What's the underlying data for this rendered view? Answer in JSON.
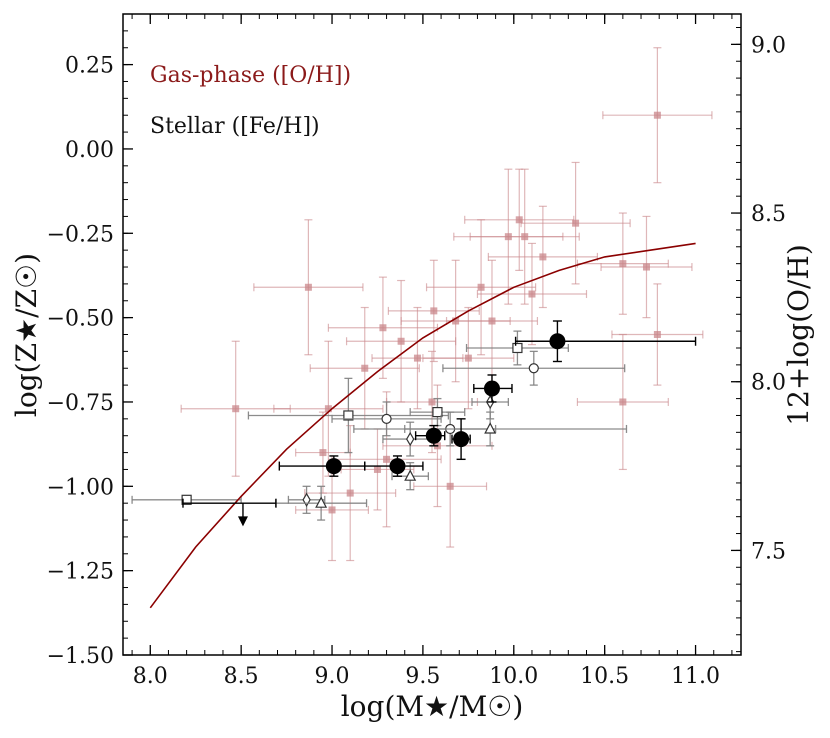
{
  "chart_data": {
    "type": "scatter",
    "xlabel": "log(M★/M☉)",
    "ylabel": "log(Z★/Z☉)",
    "y2label": "12+log(O/H)",
    "xlim": [
      7.85,
      11.25
    ],
    "ylim": [
      -1.5,
      0.4
    ],
    "y2lim": [
      7.19,
      9.09
    ],
    "x_ticks": [
      8.0,
      8.5,
      9.0,
      9.5,
      10.0,
      10.5,
      11.0
    ],
    "x_tick_labels": [
      "8.0",
      "8.5",
      "9.0",
      "9.5",
      "10.0",
      "10.5",
      "11.0"
    ],
    "y_ticks": [
      0.25,
      0.0,
      -0.25,
      -0.5,
      -0.75,
      -1.0,
      -1.25,
      -1.5
    ],
    "y_tick_labels": [
      "0.25",
      "0.00",
      "−0.25",
      "−0.50",
      "−0.75",
      "−1.00",
      "−1.25",
      "−1.50"
    ],
    "y2_ticks": [
      9.0,
      8.5,
      8.0,
      7.5
    ],
    "y2_tick_labels": [
      "9.0",
      "8.5",
      "8.0",
      "7.5"
    ],
    "legend": [
      {
        "label": "Gas-phase ([O/H])",
        "color": "#8b1a1a"
      },
      {
        "label": "Stellar ([Fe/H])",
        "color": "#111111"
      }
    ],
    "colors": {
      "gas": "#c9878b",
      "relation": "#8b0000",
      "stellar_black": "#000000",
      "stellar_gray": "#808080"
    },
    "relation_curve": {
      "name": "gas-phase mass-metallicity relation",
      "x": [
        8.0,
        8.25,
        8.5,
        8.75,
        9.0,
        9.25,
        9.5,
        9.75,
        10.0,
        10.25,
        10.5,
        10.75,
        11.0
      ],
      "y": [
        -1.36,
        -1.18,
        -1.03,
        -0.89,
        -0.77,
        -0.66,
        -0.56,
        -0.48,
        -0.41,
        -0.36,
        -0.32,
        -0.3,
        -0.28
      ]
    },
    "gas_points": [
      {
        "x": 10.79,
        "y": 0.1,
        "xerr": 0.3,
        "yerr": 0.2
      },
      {
        "x": 8.87,
        "y": -0.41,
        "xerr": 0.3,
        "yerr": 0.2
      },
      {
        "x": 8.47,
        "y": -0.77,
        "xerr": 0.3,
        "yerr": 0.2
      },
      {
        "x": 8.98,
        "y": -0.77,
        "xerr": 0.3,
        "yerr": 0.2
      },
      {
        "x": 9.18,
        "y": -0.65,
        "xerr": 0.3,
        "yerr": 0.18
      },
      {
        "x": 9.28,
        "y": -0.53,
        "xerr": 0.3,
        "yerr": 0.15
      },
      {
        "x": 9.38,
        "y": -0.57,
        "xerr": 0.3,
        "yerr": 0.18
      },
      {
        "x": 9.47,
        "y": -0.62,
        "xerr": 0.25,
        "yerr": 0.15
      },
      {
        "x": 9.56,
        "y": -0.48,
        "xerr": 0.25,
        "yerr": 0.15
      },
      {
        "x": 9.68,
        "y": -0.51,
        "xerr": 0.3,
        "yerr": 0.18
      },
      {
        "x": 9.75,
        "y": -0.62,
        "xerr": 0.25,
        "yerr": 0.15
      },
      {
        "x": 9.82,
        "y": -0.41,
        "xerr": 0.3,
        "yerr": 0.2
      },
      {
        "x": 9.88,
        "y": -0.51,
        "xerr": 0.25,
        "yerr": 0.18
      },
      {
        "x": 9.97,
        "y": -0.26,
        "xerr": 0.3,
        "yerr": 0.2
      },
      {
        "x": 10.03,
        "y": -0.21,
        "xerr": 0.3,
        "yerr": 0.15
      },
      {
        "x": 10.06,
        "y": -0.26,
        "xerr": 0.3,
        "yerr": 0.2
      },
      {
        "x": 10.1,
        "y": -0.43,
        "xerr": 0.3,
        "yerr": 0.15
      },
      {
        "x": 10.16,
        "y": -0.32,
        "xerr": 0.3,
        "yerr": 0.15
      },
      {
        "x": 10.34,
        "y": -0.22,
        "xerr": 0.3,
        "yerr": 0.18
      },
      {
        "x": 10.6,
        "y": -0.34,
        "xerr": 0.25,
        "yerr": 0.15
      },
      {
        "x": 10.73,
        "y": -0.35,
        "xerr": 0.25,
        "yerr": 0.15
      },
      {
        "x": 10.79,
        "y": -0.55,
        "xerr": 0.25,
        "yerr": 0.15
      },
      {
        "x": 10.6,
        "y": -0.75,
        "xerr": 0.25,
        "yerr": 0.2
      },
      {
        "x": 9.3,
        "y": -0.92,
        "xerr": 0.3,
        "yerr": 0.2
      },
      {
        "x": 9.58,
        "y": -0.88,
        "xerr": 0.3,
        "yerr": 0.18
      },
      {
        "x": 9.65,
        "y": -1.0,
        "xerr": 0.2,
        "yerr": 0.18
      },
      {
        "x": 9.55,
        "y": -0.75,
        "xerr": 0.25,
        "yerr": 0.15
      },
      {
        "x": 9.0,
        "y": -1.07,
        "xerr": 0.2,
        "yerr": 0.15
      },
      {
        "x": 9.25,
        "y": -0.95,
        "xerr": 0.2,
        "yerr": 0.12
      },
      {
        "x": 8.95,
        "y": -0.9,
        "xerr": 0.15,
        "yerr": 0.12
      },
      {
        "x": 9.1,
        "y": -1.02,
        "xerr": 0.25,
        "yerr": 0.2
      }
    ],
    "stellar_filled": [
      {
        "x": 9.01,
        "y": -0.94,
        "xerr_lo": 0.3,
        "xerr_hi": 0.17,
        "yerr": 0.03
      },
      {
        "x": 9.36,
        "y": -0.94,
        "xerr_lo": 0.18,
        "xerr_hi": 0.14,
        "yerr": 0.03
      },
      {
        "x": 9.56,
        "y": -0.85,
        "xerr_lo": 0.1,
        "xerr_hi": 0.06,
        "yerr": 0.03
      },
      {
        "x": 9.71,
        "y": -0.86,
        "xerr_lo": 0.05,
        "xerr_hi": 0.05,
        "yerr": 0.06
      },
      {
        "x": 9.88,
        "y": -0.71,
        "xerr_lo": 0.1,
        "xerr_hi": 0.11,
        "yerr": 0.04
      },
      {
        "x": 10.24,
        "y": -0.57,
        "xerr_lo": 0.23,
        "xerr_hi": 0.76,
        "yerr": 0.06
      }
    ],
    "stellar_open": [
      {
        "marker": "square",
        "x": 9.09,
        "y": -0.79,
        "xerr": 0.55,
        "yerr": 0.11
      },
      {
        "marker": "square",
        "x": 9.58,
        "y": -0.78,
        "xerr": 0.15,
        "yerr": 0.04
      },
      {
        "marker": "square",
        "x": 10.02,
        "y": -0.59,
        "xerr": 0.28,
        "yerr": 0.05
      },
      {
        "marker": "circle",
        "x": 9.3,
        "y": -0.8,
        "xerr": 0.3,
        "yerr": 0.05
      },
      {
        "marker": "circle",
        "x": 9.65,
        "y": -0.83,
        "xerr": 0.25,
        "yerr": 0.05
      },
      {
        "marker": "circle",
        "x": 10.11,
        "y": -0.65,
        "xerr": 0.5,
        "yerr": 0.05
      },
      {
        "marker": "diamond",
        "x": 8.86,
        "y": -1.04,
        "xerr": 0.1,
        "yerr": 0.04
      },
      {
        "marker": "diamond",
        "x": 9.43,
        "y": -0.86,
        "xerr": 0.15,
        "yerr": 0.05
      },
      {
        "marker": "diamond",
        "x": 9.87,
        "y": -0.75,
        "xerr": 0.1,
        "yerr": 0.05
      },
      {
        "marker": "triangle",
        "x": 8.94,
        "y": -1.05,
        "xerr": 0.25,
        "yerr": 0.05
      },
      {
        "marker": "triangle",
        "x": 9.43,
        "y": -0.97,
        "xerr": 0.1,
        "yerr": 0.04
      },
      {
        "marker": "triangle",
        "x": 9.87,
        "y": -0.83,
        "xerr": 0.75,
        "yerr": 0.05
      },
      {
        "marker": "square",
        "x": 8.2,
        "y": -1.04,
        "xerr": 0.3,
        "yerr": 0.0
      }
    ],
    "upper_limit": {
      "x": 8.51,
      "y": -1.05,
      "xerr": 0.33,
      "arrow_to": -1.11
    }
  }
}
